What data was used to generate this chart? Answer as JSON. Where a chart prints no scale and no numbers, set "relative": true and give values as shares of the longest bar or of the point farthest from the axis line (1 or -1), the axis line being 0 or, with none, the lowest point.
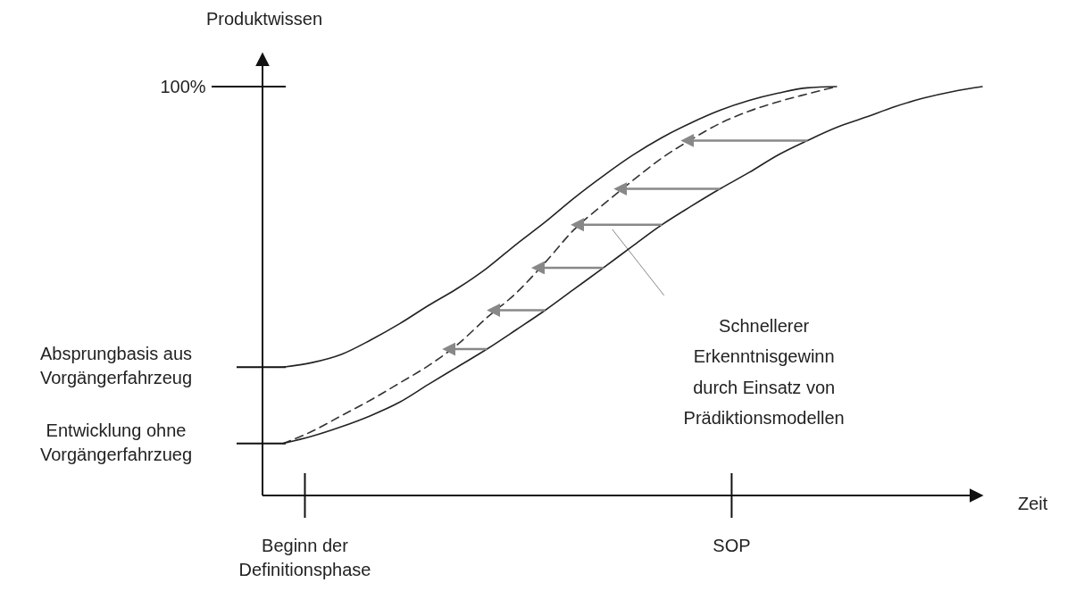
{
  "chart_data": {
    "type": "line",
    "relative": true,
    "ylabel": "Produktwissen",
    "xlabel": "Zeit",
    "categories": [
      null,
      null,
      null,
      null,
      null,
      null,
      null,
      null,
      null,
      null,
      null,
      null,
      null,
      null,
      null,
      null,
      null,
      null,
      null,
      null,
      null,
      null,
      null,
      null,
      null
    ],
    "series": [
      {
        "color": "#222222",
        "line_style": "solid",
        "values": [
          0.314,
          0.325,
          0.345,
          0.38,
          0.42,
          0.465,
          0.507,
          0.556,
          0.614,
          0.669,
          0.728,
          0.782,
          0.832,
          0.875,
          0.911,
          0.942,
          0.966,
          0.984,
          0.997,
          1.0,
          null,
          null,
          null,
          null,
          null
        ]
      },
      {
        "color": "#333333",
        "line_style": "dashed",
        "values": [
          0.127,
          0.157,
          0.195,
          0.233,
          0.275,
          0.318,
          0.37,
          0.435,
          0.495,
          0.57,
          0.651,
          0.712,
          0.77,
          0.825,
          0.87,
          0.91,
          0.94,
          0.963,
          0.982,
          1.0,
          null,
          null,
          null,
          null,
          null
        ]
      },
      {
        "color": "#222222",
        "line_style": "solid",
        "values": [
          0.127,
          0.145,
          0.168,
          0.195,
          0.228,
          0.272,
          0.315,
          0.358,
          0.405,
          0.453,
          0.505,
          0.557,
          0.61,
          0.662,
          0.707,
          0.75,
          0.79,
          0.833,
          0.868,
          0.9,
          0.925,
          0.951,
          0.972,
          0.988,
          1.0
        ]
      }
    ],
    "annotations": [
      "100%",
      "Absprungbasis aus\nVorgängerfahrzeug",
      "Entwicklung ohne\nVorgängerfahrzueg",
      "Beginn der\nDefinitionsphase",
      "SOP",
      "Schnellerer\nErkenntnisgewinn\ndurch Einsatz von\nPrädiktionsmodellen"
    ]
  }
}
